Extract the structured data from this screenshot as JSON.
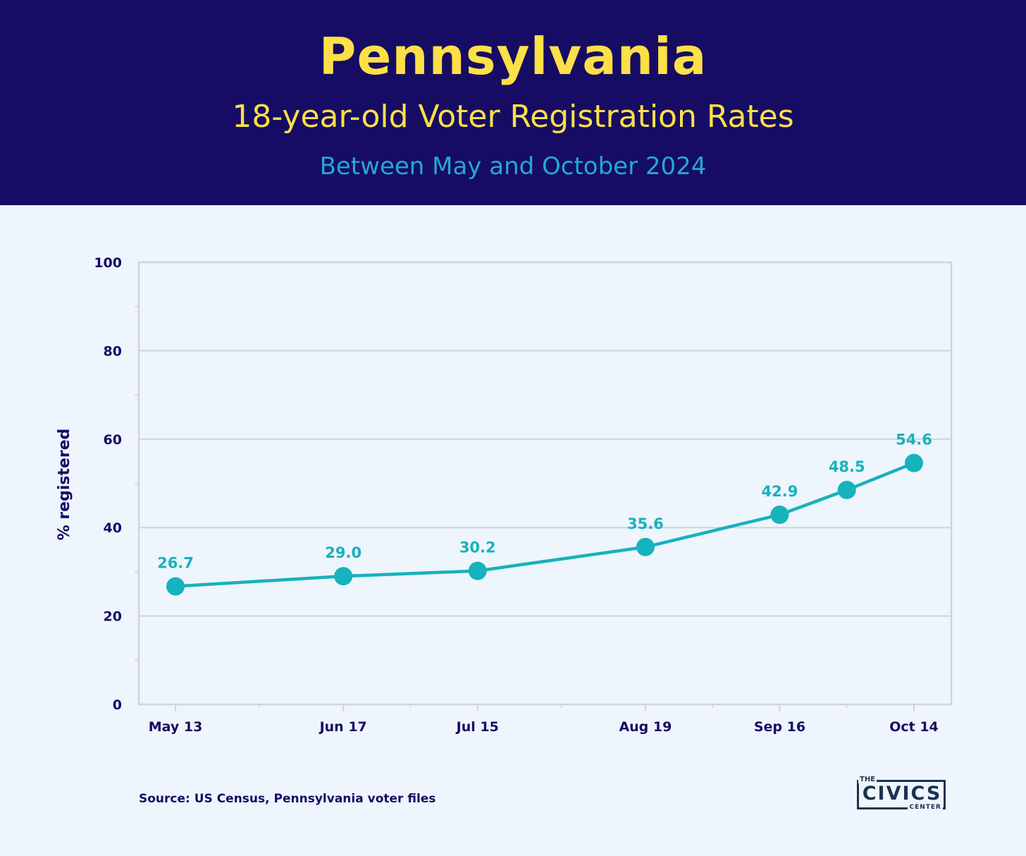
{
  "header": {
    "title": "Pennsylvania",
    "subtitle": "18-year-old Voter Registration Rates",
    "daterange": "Between May and October 2024"
  },
  "source": "Source: US Census, Pennsylvania voter files",
  "logo": {
    "top": "THE",
    "main": "CIVICS",
    "bottom": "CENTER"
  },
  "colors": {
    "header_bg": "#160c64",
    "title": "#fde047",
    "daterange": "#24a9d0",
    "series": "#16b2bd",
    "text": "#160c64",
    "grid": "#d0d4d9"
  },
  "chart_data": {
    "type": "line",
    "title": "Pennsylvania",
    "subtitle": "18-year-old Voter Registration Rates",
    "xlabel": "",
    "ylabel": "% registered",
    "ylim": [
      0,
      100
    ],
    "yticks": [
      0,
      20,
      40,
      60,
      80,
      100
    ],
    "grid": true,
    "x": [
      "2024-05-13",
      "2024-06-17",
      "2024-07-15",
      "2024-08-19",
      "2024-09-16",
      "2024-09-30",
      "2024-10-14"
    ],
    "xticks": [
      {
        "date": "2024-05-13",
        "label": "May 13"
      },
      {
        "date": "2024-06-17",
        "label": "Jun 17"
      },
      {
        "date": "2024-07-15",
        "label": "Jul 15"
      },
      {
        "date": "2024-08-19",
        "label": "Aug 19"
      },
      {
        "date": "2024-09-16",
        "label": "Sep 16"
      },
      {
        "date": "2024-10-14",
        "label": "Oct 14"
      }
    ],
    "series": [
      {
        "values": [
          26.7,
          29.0,
          30.2,
          35.6,
          42.9,
          48.5,
          54.6
        ],
        "labels": [
          "26.7",
          "29.0",
          "30.2",
          "35.6",
          "42.9",
          "48.5",
          "54.6"
        ]
      }
    ]
  }
}
